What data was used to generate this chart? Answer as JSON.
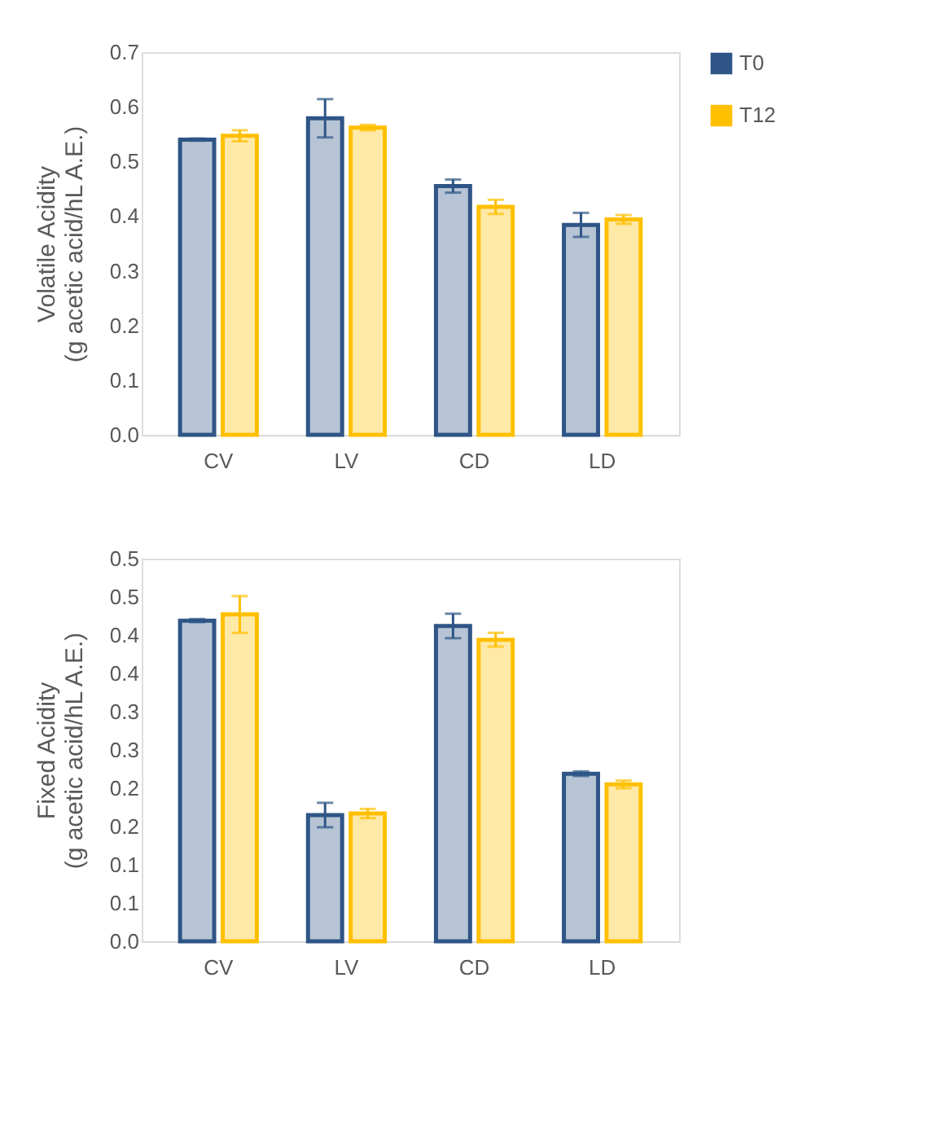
{
  "chart_data": [
    {
      "type": "bar",
      "ylabel": "Volatile Acidity\n(g acetic acid/hL A.E.)",
      "categories": [
        "CV",
        "LV",
        "CD",
        "LD"
      ],
      "series": [
        {
          "name": "T0",
          "color": "#2e5586",
          "values": [
            0.54,
            0.579,
            0.455,
            0.384
          ],
          "errors": [
            0.002,
            0.035,
            0.012,
            0.022
          ]
        },
        {
          "name": "T12",
          "color": "#ffc000",
          "values": [
            0.547,
            0.562,
            0.417,
            0.394
          ],
          "errors": [
            0.01,
            0.005,
            0.013,
            0.008
          ]
        }
      ],
      "ylim": [
        0,
        0.7
      ],
      "yticks": [
        {
          "value": 0,
          "label": "0.0"
        },
        0.1,
        0.2,
        0.3,
        0.4,
        0.5,
        0.6,
        0.7
      ],
      "grid": false,
      "legend": "right"
    },
    {
      "type": "bar",
      "ylabel": "Fixed Acidity\n(g acetic acid/hL A.E.)",
      "categories": [
        "CV",
        "LV",
        "CD",
        "LD"
      ],
      "series": [
        {
          "name": "T0",
          "color": "#2e5586",
          "values": [
            0.419,
            0.165,
            0.412,
            0.219
          ],
          "errors": [
            0.002,
            0.016,
            0.016,
            0.003
          ]
        },
        {
          "name": "T12",
          "color": "#ffc000",
          "values": [
            0.427,
            0.167,
            0.394,
            0.205
          ],
          "errors": [
            0.024,
            0.006,
            0.009,
            0.005
          ]
        }
      ],
      "ylim": [
        0,
        0.5
      ],
      "yticks": [
        {
          "value": 0,
          "label": "0.0"
        },
        {
          "value": 0.05,
          "label": "0.1"
        },
        0.1,
        {
          "value": 0.15,
          "label": "0.2"
        },
        0.2,
        {
          "value": 0.25,
          "label": "0.3"
        },
        0.3,
        {
          "value": 0.35,
          "label": "0.4"
        },
        0.4,
        {
          "value": 0.45,
          "label": "0.5"
        },
        0.5
      ],
      "grid": false,
      "legend": "right"
    }
  ]
}
